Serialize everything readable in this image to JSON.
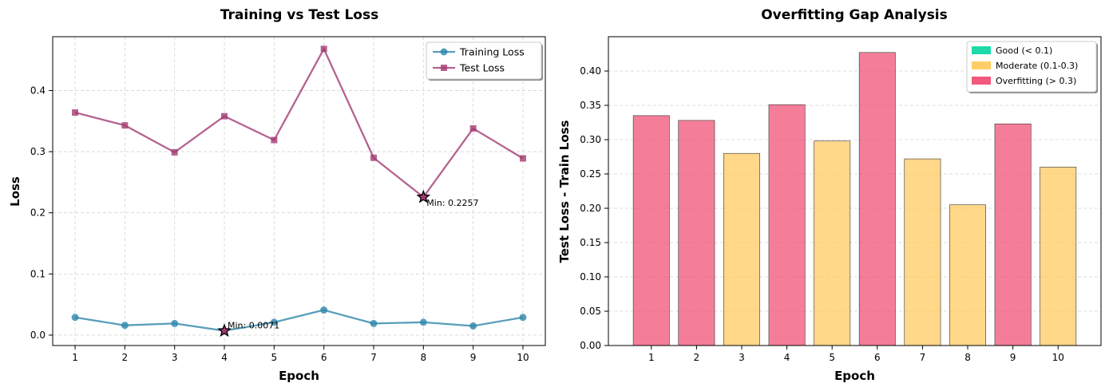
{
  "chart_data": [
    {
      "type": "line",
      "title": "Training vs Test Loss",
      "xlabel": "Epoch",
      "ylabel": "Loss",
      "xlim": [
        0.55,
        10.45
      ],
      "ylim": [
        -0.017,
        0.488
      ],
      "xticks": [
        1,
        2,
        3,
        4,
        5,
        6,
        7,
        8,
        9,
        10
      ],
      "yticks": [
        0.0,
        0.1,
        0.2,
        0.3,
        0.4
      ],
      "ytick_labels": [
        "0.0",
        "0.1",
        "0.2",
        "0.3",
        "0.4"
      ],
      "grid": true,
      "legend_position": "top-right",
      "x": [
        1,
        2,
        3,
        4,
        5,
        6,
        7,
        8,
        9,
        10
      ],
      "series": [
        {
          "name": "Training Loss",
          "color": "#2E86AB",
          "marker": "circle",
          "values": [
            0.029,
            0.016,
            0.019,
            0.0071,
            0.021,
            0.041,
            0.019,
            0.021,
            0.015,
            0.029
          ]
        },
        {
          "name": "Test Loss",
          "color": "#A23B72",
          "marker": "square",
          "values": [
            0.364,
            0.343,
            0.299,
            0.358,
            0.319,
            0.468,
            0.29,
            0.2257,
            0.338,
            0.289
          ]
        }
      ],
      "annotations": [
        {
          "text": "Min: 0.0071",
          "x": 4,
          "y": 0.0071,
          "marker": "star"
        },
        {
          "text": "Min: 0.2257",
          "x": 8,
          "y": 0.2257,
          "marker": "star"
        }
      ]
    },
    {
      "type": "bar",
      "title": "Overfitting Gap Analysis",
      "xlabel": "Epoch",
      "ylabel": "Test Loss - Train Loss",
      "categories": [
        "1",
        "2",
        "3",
        "4",
        "5",
        "6",
        "7",
        "8",
        "9",
        "10"
      ],
      "values": [
        0.335,
        0.328,
        0.28,
        0.351,
        0.298,
        0.427,
        0.272,
        0.205,
        0.323,
        0.26
      ],
      "ylim": [
        0,
        0.45
      ],
      "yticks": [
        0.0,
        0.05,
        0.1,
        0.15,
        0.2,
        0.25,
        0.3,
        0.35,
        0.4
      ],
      "ytick_labels": [
        "0.00",
        "0.05",
        "0.10",
        "0.15",
        "0.20",
        "0.25",
        "0.30",
        "0.35",
        "0.40"
      ],
      "grid": true,
      "grid_axis": "y",
      "legend_position": "top-right",
      "legend": [
        {
          "label": "Good (< 0.1)",
          "color": "#06D6A0"
        },
        {
          "label": "Moderate (0.1-0.3)",
          "color": "#FFC857"
        },
        {
          "label": "Overfitting (> 0.3)",
          "color": "#EF476F"
        }
      ]
    }
  ]
}
